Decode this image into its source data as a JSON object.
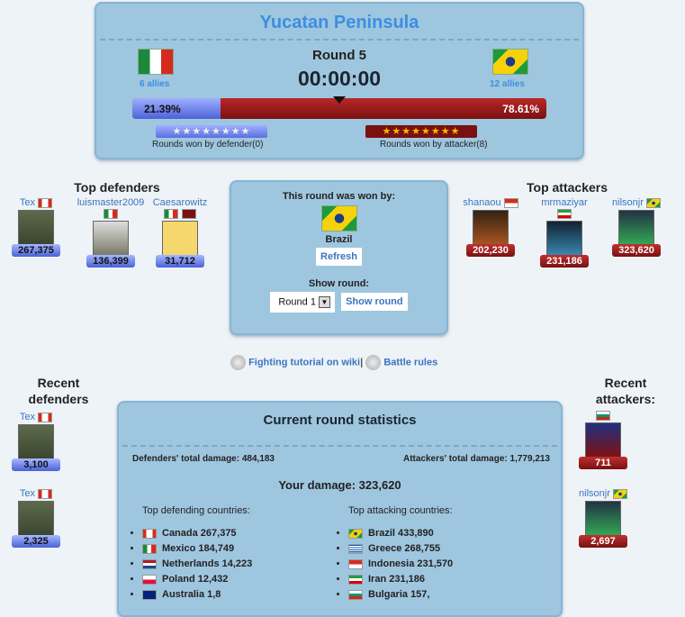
{
  "battle": {
    "region": "Yucatan Peninsula",
    "round_label": "Round 5",
    "timer": "00:00:00",
    "defender": {
      "country": "Mexico",
      "allies": "6 allies",
      "percent": "21.39%",
      "rounds_won": "Rounds won by defender(0)",
      "rounds_won_count": 0
    },
    "attacker": {
      "country": "Brazil",
      "allies": "12 allies",
      "percent": "78.61%",
      "rounds_won": "Rounds won by attacker(8)",
      "rounds_won_count": 8
    },
    "defender_share": 21.39,
    "colors": {
      "defender": "#5a72e0",
      "attacker": "#9a1c1c"
    }
  },
  "top_defenders": {
    "title": "Top defenders",
    "players": [
      {
        "name": "Tex",
        "flag": "ca",
        "damage": "267,375"
      },
      {
        "name": "luismaster2009",
        "flag": "mx",
        "damage": "136,399"
      },
      {
        "name": "Caesarowitz",
        "flag": "mx",
        "damage": "31,712"
      }
    ]
  },
  "top_attackers": {
    "title": "Top attackers",
    "players": [
      {
        "name": "shanaou",
        "flag": "id",
        "damage": "202,230"
      },
      {
        "name": "mrmaziyar",
        "flag": "ir",
        "damage": "231,186"
      },
      {
        "name": "nilsonjr",
        "flag": "br",
        "damage": "323,620"
      }
    ]
  },
  "round_winner": {
    "label": "This round was won by:",
    "country": "Brazil",
    "refresh": "Refresh",
    "show_round_label": "Show round:",
    "selected_round": "Round 1",
    "show_round_button": "Show round"
  },
  "links": {
    "tutorial": "Fighting tutorial on wiki",
    "separator": "|",
    "rules": "Battle rules"
  },
  "recent_defenders": {
    "title": "Recent defenders",
    "players": [
      {
        "name": "Tex",
        "damage": "3,100"
      },
      {
        "name": "Tex",
        "damage": "2,325"
      }
    ]
  },
  "recent_attackers": {
    "title": "Recent attackers:",
    "players": [
      {
        "name": "",
        "damage": "711"
      },
      {
        "name": "nilsonjr",
        "damage": "2,697"
      }
    ]
  },
  "stats": {
    "title": "Current round statistics",
    "def_total": "Defenders' total damage: 484,183",
    "att_total": "Attackers' total damage: 1,779,213",
    "your_damage": "Your damage: 323,620",
    "def_countries_title": "Top defending countries:",
    "att_countries_title": "Top attacking countries:",
    "def_countries": [
      "Canada 267,375",
      "Mexico 184,749",
      "Netherlands 14,223",
      "Poland 12,432",
      "Australia 1,8"
    ],
    "att_countries": [
      "Brazil 433,890",
      "Greece 268,755",
      "Indonesia 231,570",
      "Iran 231,186",
      "Bulgaria 157,"
    ]
  }
}
